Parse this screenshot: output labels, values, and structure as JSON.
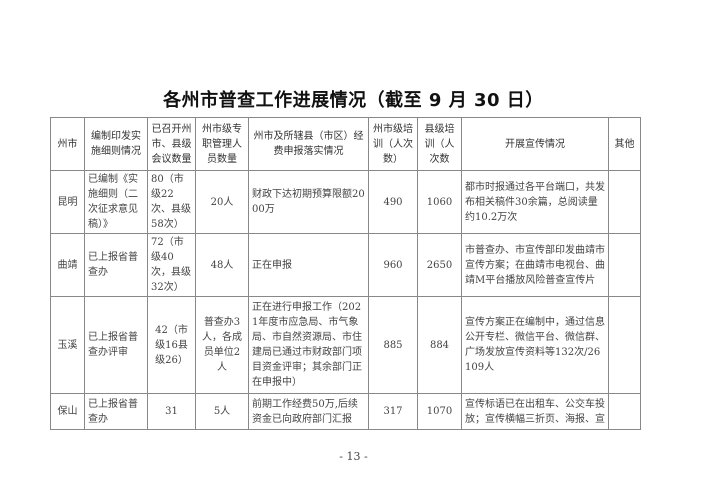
{
  "title": "各州市普查工作进展情况（截至 9 月 30 日）",
  "table": {
    "headers": [
      "州市",
      "编制印发实施细则情况",
      "已召开州市、县级会议数量",
      "州市级专职管理人员数量",
      "州市及所辖县（市区）经费申报落实情况",
      "州市级培训（人次数）",
      "县级培训（人次数",
      "开展宣传情况",
      "其他"
    ],
    "rows": [
      [
        "昆明",
        "已编制《实施细则（二次征求意见稿）》",
        "80（市级22次、县级58次）",
        "20人",
        "财政下达初期预算限额2000万",
        "490",
        "1060",
        "都市时报通过各平台端口，共发布相关稿件30余篇，总阅读量约10.2万次",
        ""
      ],
      [
        "曲靖",
        "已上报省普查办",
        "72（市级40次，县级32次）",
        "48人",
        "正在申报",
        "960",
        "2650",
        "市普查办、市宣传部印发曲靖市宣传方案；在曲靖市电视台、曲靖M平台播放风险普查宣传片",
        ""
      ],
      [
        "玉溪",
        "已上报省普查办评审",
        "42（市级16县级26）",
        "普查办3人，各成员单位2人",
        "正在进行申报工作（2021年度市应急局、市气象局、市自然资源局、市住建局已通过市财政部门项目资金评审；其余部门正在申报中）",
        "885",
        "884",
        "宣传方案正在编制中，通过信息公开专栏、微信平台、微信群、广场发放宣传资料等132次/26109人",
        ""
      ],
      [
        "保山",
        "已上报省普查办",
        "31",
        "5人",
        "前期工作经费50万,后续资金已向政府部门汇报",
        "317",
        "1070",
        "宣传标语已在出租车、公交车投放；宣传横幅三折页、海报、宣",
        ""
      ]
    ]
  },
  "page_number": "- 13 -"
}
